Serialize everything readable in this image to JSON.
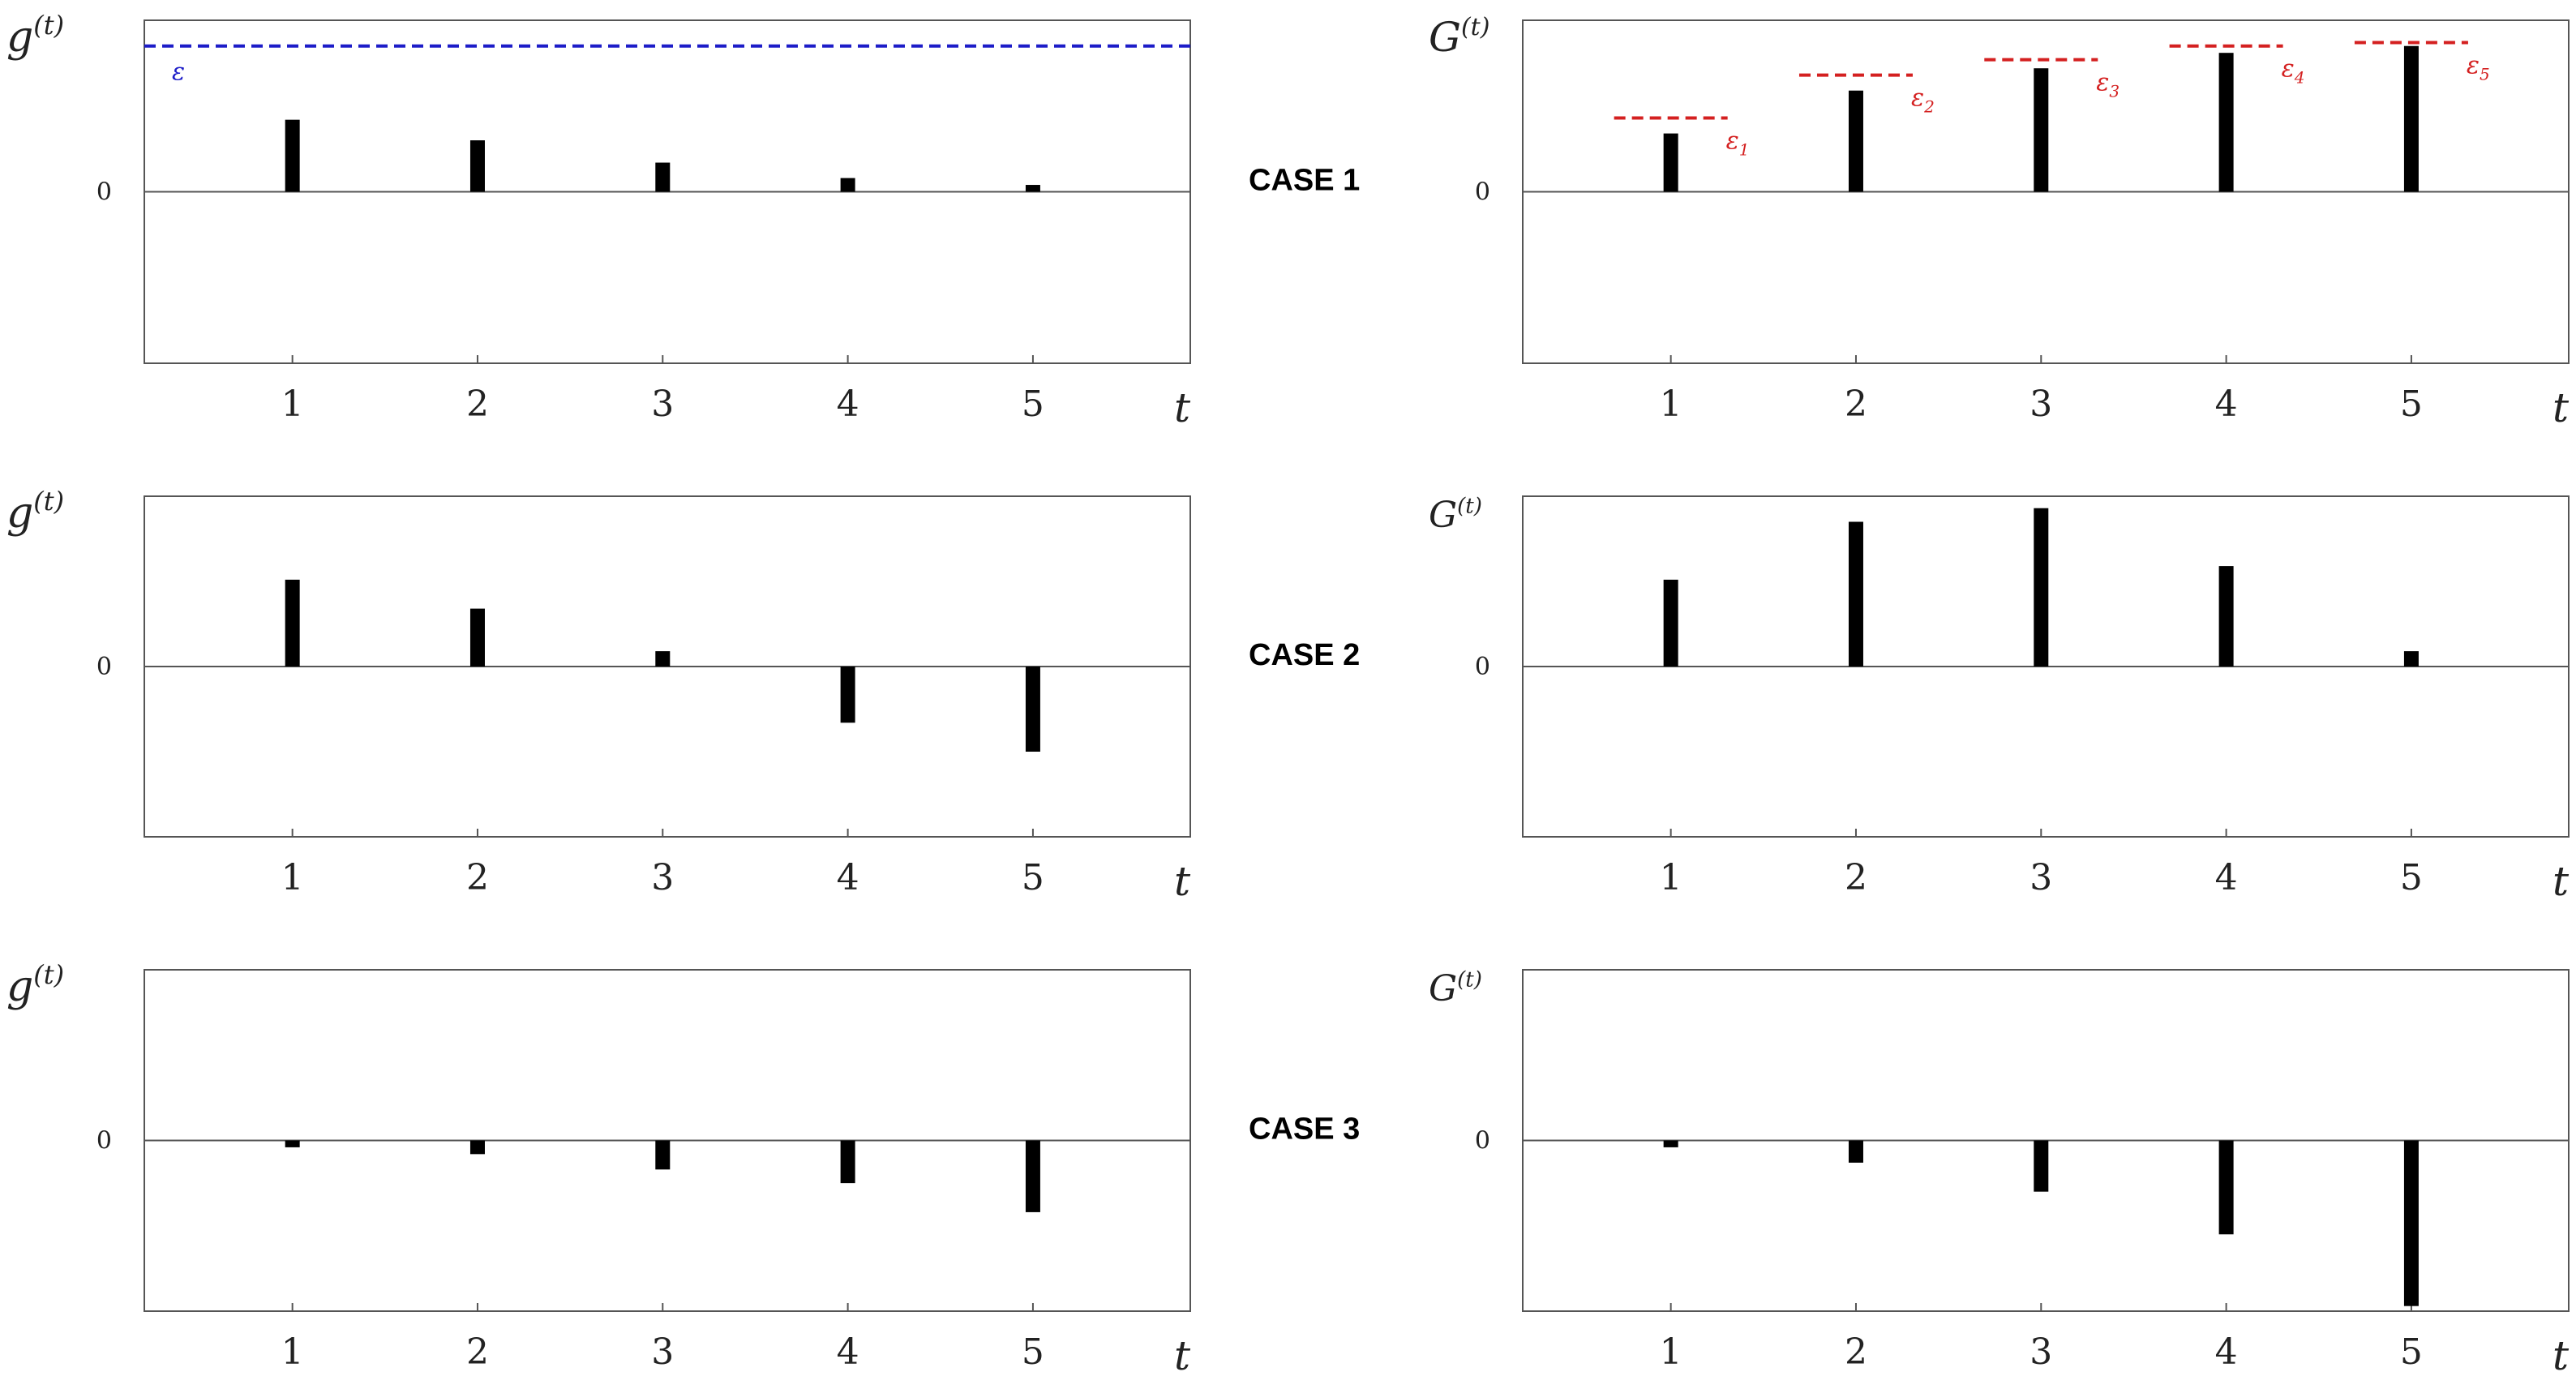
{
  "colors": {
    "bar": "#000000",
    "axis_frame": "#555555",
    "zero_line": "#555555",
    "epsilon_global": "#1c1cc8",
    "epsilon_local": "#d42020"
  },
  "x_axis_symbol": "t",
  "zero_tick_label": "0",
  "chart_data": [
    {
      "type": "bar",
      "case": "CASE 1",
      "series_name": "g",
      "ylabel": "g",
      "ylabel_sup": "(t)",
      "categories": [
        "1",
        "2",
        "3",
        "4",
        "5"
      ],
      "x": [
        1,
        2,
        3,
        4,
        5
      ],
      "values": [
        0.42,
        0.3,
        0.17,
        0.08,
        0.04
      ],
      "xlabel": "t",
      "xlim": [
        0.2,
        5.85
      ],
      "ylim": [
        -1,
        1
      ],
      "threshold": {
        "label": "ε",
        "value": 0.85,
        "style": "dashed"
      }
    },
    {
      "type": "bar",
      "case": "CASE 1",
      "series_name": "G",
      "ylabel": "G",
      "ylabel_sup": "(t)",
      "categories": [
        "1",
        "2",
        "3",
        "4",
        "5"
      ],
      "x": [
        1,
        2,
        3,
        4,
        5
      ],
      "values": [
        0.34,
        0.59,
        0.72,
        0.81,
        0.85
      ],
      "xlabel": "t",
      "xlim": [
        0.2,
        5.85
      ],
      "ylim": [
        -1,
        1
      ],
      "thresholds": [
        {
          "label": "ε",
          "subscript": "1",
          "value": 0.43
        },
        {
          "label": "ε",
          "subscript": "2",
          "value": 0.68
        },
        {
          "label": "ε",
          "subscript": "3",
          "value": 0.77
        },
        {
          "label": "ε",
          "subscript": "4",
          "value": 0.85
        },
        {
          "label": "ε",
          "subscript": "5",
          "value": 0.87
        }
      ]
    },
    {
      "type": "bar",
      "case": "CASE 2",
      "series_name": "g",
      "ylabel": "g",
      "ylabel_sup": "(t)",
      "categories": [
        "1",
        "2",
        "3",
        "4",
        "5"
      ],
      "x": [
        1,
        2,
        3,
        4,
        5
      ],
      "values": [
        0.51,
        0.34,
        0.09,
        -0.33,
        -0.5
      ],
      "xlabel": "t",
      "xlim": [
        0.2,
        5.85
      ],
      "ylim": [
        -1,
        1
      ]
    },
    {
      "type": "bar",
      "case": "CASE 2",
      "series_name": "G",
      "ylabel": "G",
      "ylabel_sup": "(t)",
      "categories": [
        "1",
        "2",
        "3",
        "4",
        "5"
      ],
      "x": [
        1,
        2,
        3,
        4,
        5
      ],
      "values": [
        0.51,
        0.85,
        0.93,
        0.59,
        0.09
      ],
      "xlabel": "t",
      "xlim": [
        0.2,
        5.85
      ],
      "ylim": [
        -1,
        1
      ]
    },
    {
      "type": "bar",
      "case": "CASE 3",
      "series_name": "g",
      "ylabel": "g",
      "ylabel_sup": "(t)",
      "categories": [
        "1",
        "2",
        "3",
        "4",
        "5"
      ],
      "x": [
        1,
        2,
        3,
        4,
        5
      ],
      "values": [
        -0.04,
        -0.08,
        -0.17,
        -0.25,
        -0.42
      ],
      "xlabel": "t",
      "xlim": [
        0.2,
        5.85
      ],
      "ylim": [
        -1,
        1
      ]
    },
    {
      "type": "bar",
      "case": "CASE 3",
      "series_name": "G",
      "ylabel": "G",
      "ylabel_sup": "(t)",
      "categories": [
        "1",
        "2",
        "3",
        "4",
        "5"
      ],
      "x": [
        1,
        2,
        3,
        4,
        5
      ],
      "values": [
        -0.04,
        -0.13,
        -0.3,
        -0.55,
        -0.97
      ],
      "xlabel": "t",
      "xlim": [
        0.2,
        5.85
      ],
      "ylim": [
        -1,
        1
      ]
    }
  ]
}
